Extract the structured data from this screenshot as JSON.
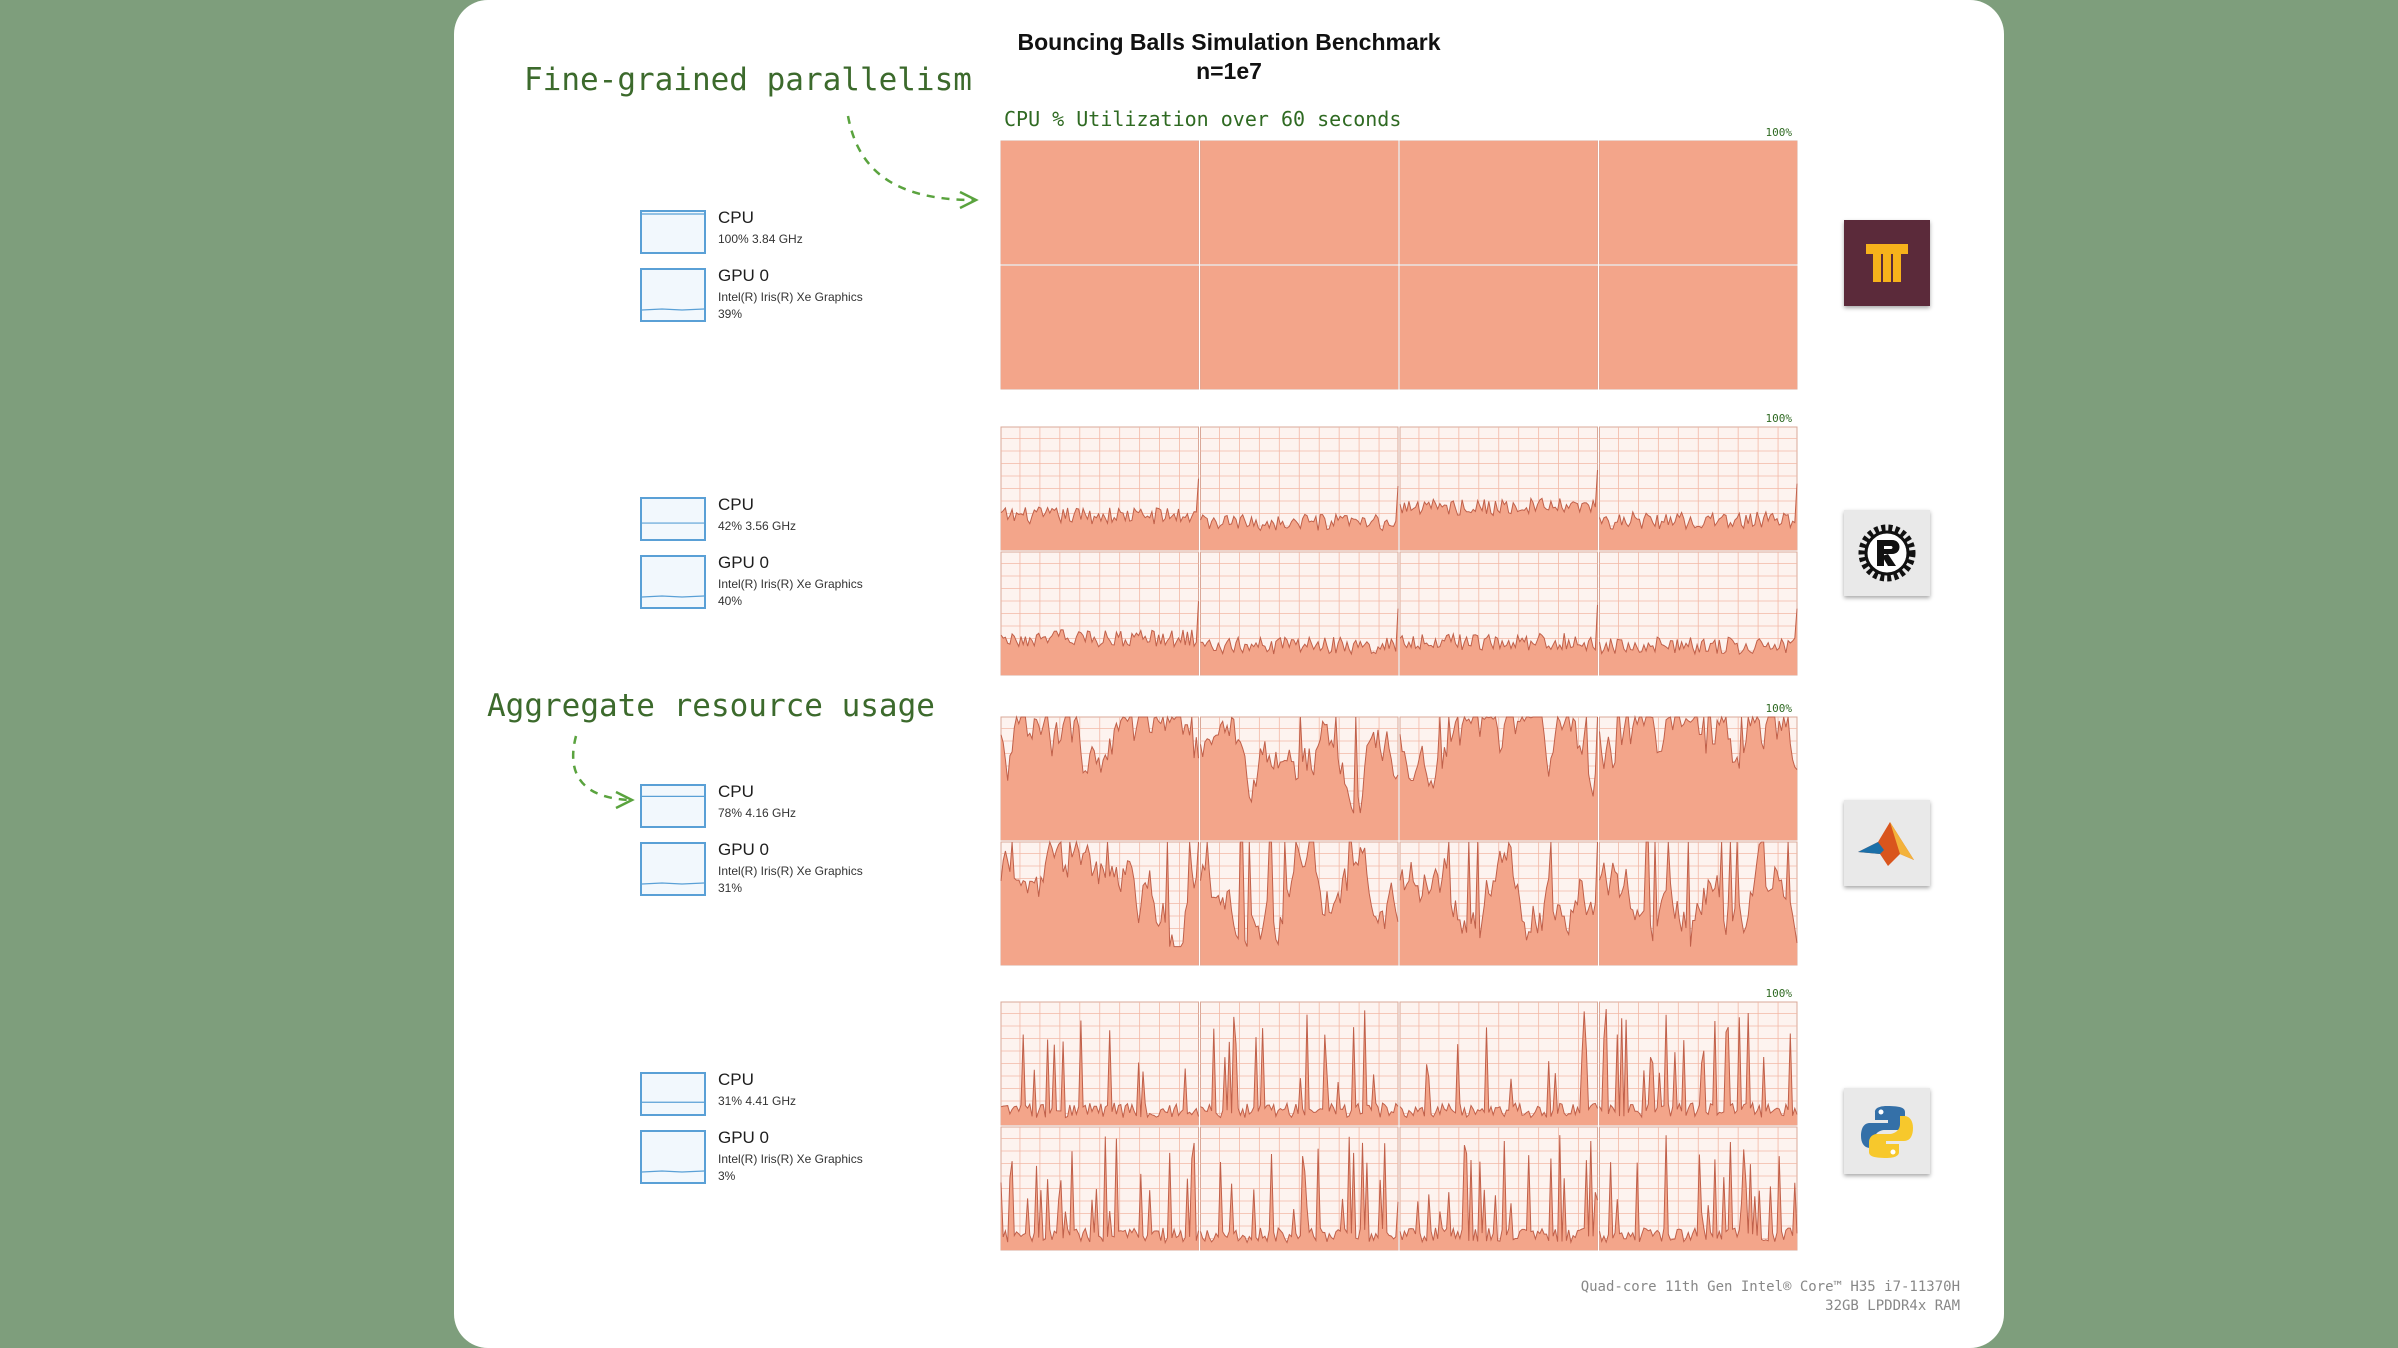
{
  "title": {
    "line1": "Bouncing Balls Simulation Benchmark",
    "line2": "n=1e7"
  },
  "annotations": {
    "fine_grained": "Fine-grained parallelism",
    "aggregate": "Aggregate resource usage",
    "utilization_label": "CPU % Utilization over 60 seconds"
  },
  "hardware": {
    "line1": "Quad-core 11th Gen Intel® Core™ H35 i7-11370H",
    "line2": "32GB LPDDR4x RAM"
  },
  "rows": [
    {
      "logo_icon": "taichi-logo-icon",
      "logo_bg": "#5b2a3a",
      "cpu_label": "CPU",
      "cpu_stats": "100% 3.84 GHz",
      "gpu_label": "GPU 0",
      "gpu_name": "Intel(R) Iris(R) Xe Graphics",
      "gpu_pct": "39%",
      "max_label": "100%"
    },
    {
      "logo_icon": "rust-logo-icon",
      "logo_bg": "#e9e9e9",
      "cpu_label": "CPU",
      "cpu_stats": "42% 3.56 GHz",
      "gpu_label": "GPU 0",
      "gpu_name": "Intel(R) Iris(R) Xe Graphics",
      "gpu_pct": "40%",
      "max_label": "100%"
    },
    {
      "logo_icon": "matlab-logo-icon",
      "logo_bg": "#e9e9e9",
      "cpu_label": "CPU",
      "cpu_stats": "78% 4.16 GHz",
      "gpu_label": "GPU 0",
      "gpu_name": "Intel(R) Iris(R) Xe Graphics",
      "gpu_pct": "31%",
      "max_label": "100%"
    },
    {
      "logo_icon": "python-logo-icon",
      "logo_bg": "#e9e9e9",
      "cpu_label": "CPU",
      "cpu_stats": "31% 4.41 GHz",
      "gpu_label": "GPU 0",
      "gpu_name": "Intel(R) Iris(R) Xe Graphics",
      "gpu_pct": "3%",
      "max_label": "100%"
    }
  ],
  "colors": {
    "fill": "#f3a58a",
    "line": "#c0604a",
    "grid": "#f2b8a6",
    "background": "#7e9e7c",
    "annotation": "#3c6a2c",
    "thumb": "#5aa0d6"
  },
  "chart_data": {
    "type": "area",
    "title": "CPU % Utilization over 60 seconds",
    "ylim": [
      0,
      100
    ],
    "grid": true,
    "charts": [
      {
        "row": 0,
        "summary_cpu_percent": 100,
        "core_utilization_mean_percent": [
          100,
          100,
          100,
          100,
          100,
          100,
          100,
          100
        ],
        "pattern": "flat"
      },
      {
        "row": 1,
        "summary_cpu_percent": 42,
        "core_utilization_mean_percent": [
          28,
          22,
          35,
          24,
          30,
          24,
          27,
          24
        ],
        "pattern": "noisy-low"
      },
      {
        "row": 2,
        "summary_cpu_percent": 78,
        "core_utilization_mean_percent": [
          78,
          70,
          78,
          80,
          60,
          60,
          60,
          60
        ],
        "pattern": "volatile-high"
      },
      {
        "row": 3,
        "summary_cpu_percent": 31,
        "core_utilization_mean_percent": [
          30,
          30,
          30,
          30,
          25,
          30,
          25,
          25
        ],
        "pattern": "spiky"
      }
    ]
  }
}
